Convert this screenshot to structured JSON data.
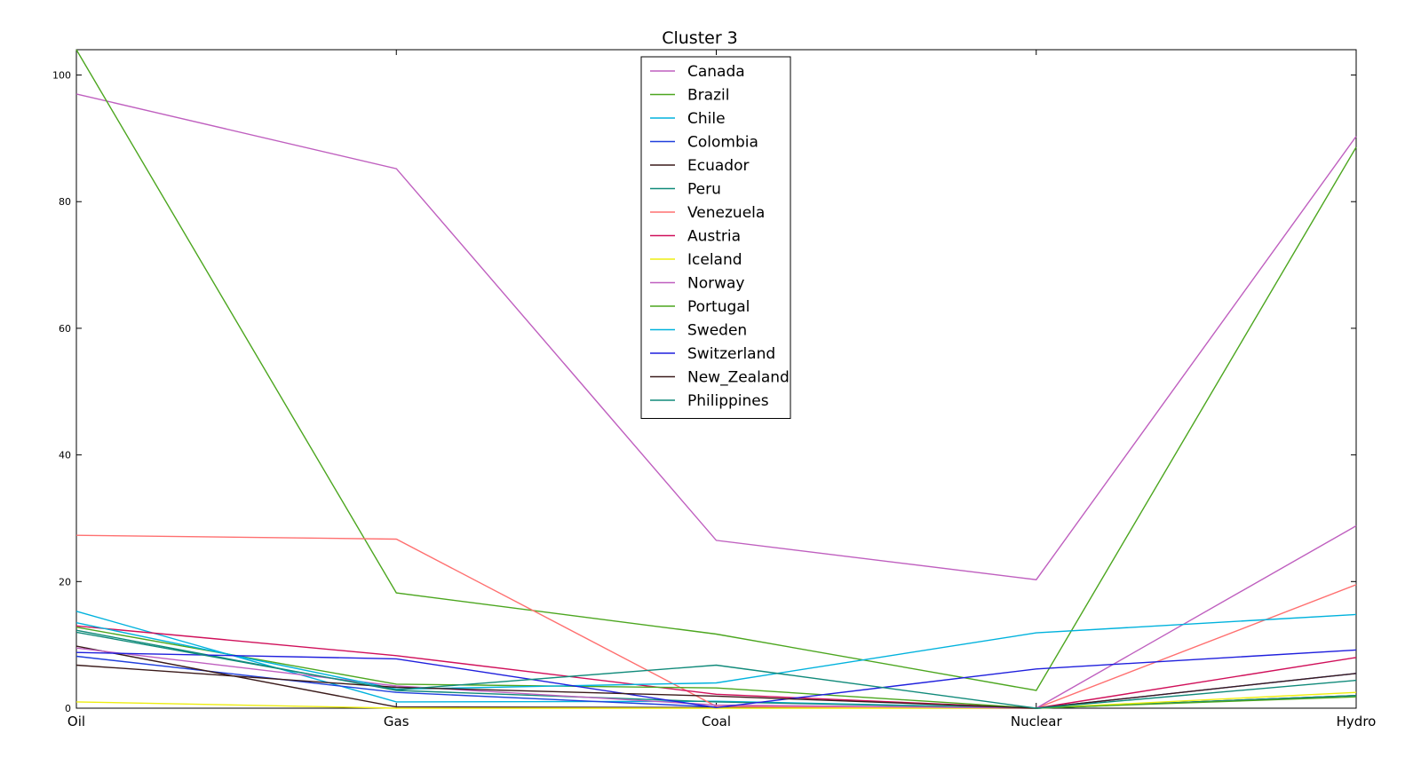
{
  "chart_data": {
    "type": "line",
    "title": "Cluster 3",
    "xlabel": "",
    "ylabel": "",
    "categories": [
      "Oil",
      "Gas",
      "Coal",
      "Nuclear",
      "Hydro"
    ],
    "y_ticks": [
      0,
      20,
      40,
      60,
      80,
      100
    ],
    "ylim": [
      0,
      104
    ],
    "grid": false,
    "legend_position": "top-center",
    "series": [
      {
        "name": "Canada",
        "color": "#bf5fbf",
        "values": [
          97,
          85.2,
          26.5,
          20.3,
          90.3
        ]
      },
      {
        "name": "Brazil",
        "color": "#4ca61f",
        "values": [
          104,
          18.2,
          11.7,
          2.8,
          88.6
        ]
      },
      {
        "name": "Chile",
        "color": "#00b2dd",
        "values": [
          15.3,
          1.0,
          1.1,
          0,
          2.0
        ]
      },
      {
        "name": "Colombia",
        "color": "#1f3fdd",
        "values": [
          8.2,
          2.5,
          0.2,
          0,
          5.5
        ]
      },
      {
        "name": "Ecuador",
        "color": "#3a1a1a",
        "values": [
          9.8,
          0.2,
          0.1,
          0,
          2.0
        ]
      },
      {
        "name": "Peru",
        "color": "#108a7a",
        "values": [
          12.3,
          2.8,
          1.0,
          0,
          2.0
        ]
      },
      {
        "name": "Venezuela",
        "color": "#ff7070",
        "values": [
          27.3,
          26.7,
          0.3,
          0,
          19.5
        ]
      },
      {
        "name": "Austria",
        "color": "#d0105a",
        "values": [
          13.0,
          8.3,
          2.2,
          0,
          8.0
        ]
      },
      {
        "name": "Iceland",
        "color": "#eeee10",
        "values": [
          1.0,
          0,
          0,
          0,
          2.5
        ]
      },
      {
        "name": "Norway",
        "color": "#bf5fbf",
        "values": [
          9.5,
          3.5,
          0.5,
          0,
          28.8
        ]
      },
      {
        "name": "Portugal",
        "color": "#4ca61f",
        "values": [
          12.8,
          3.8,
          3.2,
          0,
          1.8
        ]
      },
      {
        "name": "Sweden",
        "color": "#00b2dd",
        "values": [
          13.5,
          3.0,
          4.0,
          11.9,
          14.8
        ]
      },
      {
        "name": "Switzerland",
        "color": "#1f1fdd",
        "values": [
          8.8,
          7.8,
          0.1,
          6.2,
          9.2
        ]
      },
      {
        "name": "New_Zealand",
        "color": "#3a1a1a",
        "values": [
          6.8,
          3.3,
          1.9,
          0,
          5.5
        ]
      },
      {
        "name": "Philippines",
        "color": "#108a7a",
        "values": [
          12.0,
          2.9,
          6.8,
          0,
          4.4
        ]
      }
    ]
  }
}
